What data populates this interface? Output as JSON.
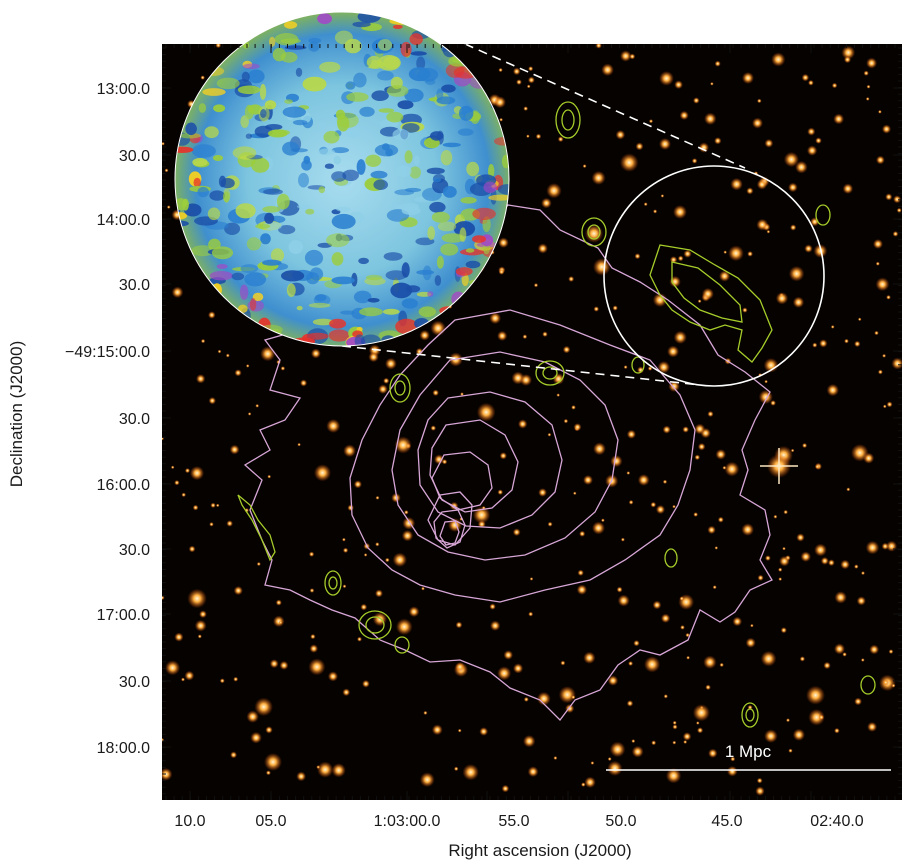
{
  "figure": {
    "x_axis": {
      "title": "Right ascension (J2000)",
      "tick_labels": [
        "10.0",
        "05.0",
        "1:03:00.0",
        "55.0",
        "50.0",
        "45.0",
        "02:40.0"
      ]
    },
    "y_axis": {
      "title": "Declination (J2000)",
      "tick_labels": [
        "13:00.0",
        "30.0",
        "14:00.0",
        "30.0",
        "−49:15:00.0",
        "30.0",
        "16:00.0",
        "30.0",
        "17:00.0",
        "30.0",
        "18:00.0"
      ]
    },
    "scale_bar": {
      "label": "1 Mpc"
    },
    "colors": {
      "background": "#050200",
      "star": "#ff9a2a",
      "xray_contour": "#d7a6d6",
      "radio_contour": "#a6cc2a",
      "circle": "#ffffff",
      "inset_base": "#6fc6e6"
    }
  }
}
